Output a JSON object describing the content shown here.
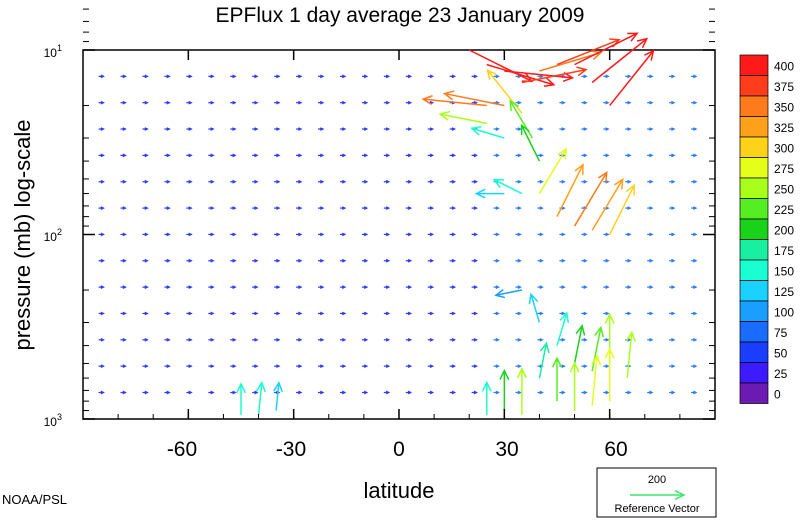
{
  "credit": "NOAA/PSL",
  "chart_data": {
    "type": "vector-field",
    "title": "EPFlux  1 day average  23 January   2009",
    "xlabel": "latitude",
    "ylabel": "pressure (mb)  log-scale",
    "xlim": [
      -90,
      90
    ],
    "ylim": [
      1000,
      10
    ],
    "y_scale": "log",
    "x_ticks": [
      -60,
      -30,
      0,
      30,
      60
    ],
    "y_ticks": [
      {
        "base": "10",
        "exp": "1",
        "value": 10
      },
      {
        "base": "10",
        "exp": "2",
        "value": 100
      },
      {
        "base": "10",
        "exp": "3",
        "value": 1000
      }
    ],
    "grid": false,
    "colorbar": {
      "labels": [
        "400",
        "375",
        "350",
        "325",
        "300",
        "275",
        "250",
        "225",
        "200",
        "175",
        "150",
        "125",
        "100",
        "75",
        "50",
        "25",
        "0"
      ],
      "colors": [
        "#ff1a1a",
        "#ff3d1a",
        "#ff7a1a",
        "#ffa01a",
        "#ffd21a",
        "#e6ff1a",
        "#aaff1a",
        "#55ee22",
        "#1ad21a",
        "#1aeea0",
        "#1affd2",
        "#1ad2ff",
        "#1a9eff",
        "#1a6bff",
        "#1a3dff",
        "#3d1aff",
        "#6b1ab4"
      ]
    },
    "reference_vector": {
      "value": "200",
      "label": "Reference Vector",
      "color": "#3de66b"
    },
    "vectors": [
      {
        "lat": 20,
        "p": 10,
        "u": 1,
        "v": -0.5,
        "mag": 400
      },
      {
        "lat": 25,
        "p": 12,
        "u": 1,
        "v": -0.3,
        "mag": 400
      },
      {
        "lat": 30,
        "p": 13,
        "u": 1,
        "v": -0.1,
        "mag": 390
      },
      {
        "lat": 35,
        "p": 15,
        "u": 1,
        "v": 0.2,
        "mag": 370
      },
      {
        "lat": 40,
        "p": 13,
        "u": 1,
        "v": 0.3,
        "mag": 360
      },
      {
        "lat": 45,
        "p": 12,
        "u": 1,
        "v": 0.4,
        "mag": 380
      },
      {
        "lat": 50,
        "p": 12,
        "u": 1,
        "v": 0.5,
        "mag": 400
      },
      {
        "lat": 55,
        "p": 15,
        "u": 1,
        "v": 0.8,
        "mag": 400
      },
      {
        "lat": 60,
        "p": 20,
        "u": 0.8,
        "v": 1,
        "mag": 400
      },
      {
        "lat": 25,
        "p": 20,
        "u": -1,
        "v": 0.1,
        "mag": 360
      },
      {
        "lat": 30,
        "p": 20,
        "u": -1,
        "v": 0.2,
        "mag": 340
      },
      {
        "lat": 25,
        "p": 25,
        "u": -1,
        "v": 0.2,
        "mag": 250
      },
      {
        "lat": 35,
        "p": 22,
        "u": -0.8,
        "v": 1,
        "mag": 300
      },
      {
        "lat": 40,
        "p": 60,
        "u": 0.6,
        "v": 1,
        "mag": 280
      },
      {
        "lat": 45,
        "p": 80,
        "u": 0.5,
        "v": 1,
        "mag": 320
      },
      {
        "lat": 50,
        "p": 90,
        "u": 0.6,
        "v": 1,
        "mag": 350
      },
      {
        "lat": 55,
        "p": 95,
        "u": 0.6,
        "v": 1,
        "mag": 330
      },
      {
        "lat": 60,
        "p": 100,
        "u": 0.5,
        "v": 1,
        "mag": 300
      },
      {
        "lat": 38,
        "p": 30,
        "u": -0.6,
        "v": 1,
        "mag": 220
      },
      {
        "lat": 30,
        "p": 30,
        "u": -1,
        "v": 0.3,
        "mag": 160
      },
      {
        "lat": 30,
        "p": 60,
        "u": -1,
        "v": 0,
        "mag": 120
      },
      {
        "lat": 35,
        "p": 60,
        "u": -0.8,
        "v": 0.4,
        "mag": 140
      },
      {
        "lat": 40,
        "p": 40,
        "u": -0.5,
        "v": 1,
        "mag": 200
      },
      {
        "lat": 35,
        "p": 200,
        "u": -1,
        "v": -0.2,
        "mag": 110
      },
      {
        "lat": 40,
        "p": 300,
        "u": -0.3,
        "v": 1,
        "mag": 130
      },
      {
        "lat": 45,
        "p": 400,
        "u": 0.3,
        "v": 1,
        "mag": 160
      },
      {
        "lat": 50,
        "p": 500,
        "u": 0.2,
        "v": 1,
        "mag": 190
      },
      {
        "lat": 55,
        "p": 550,
        "u": 0.2,
        "v": 1,
        "mag": 230
      },
      {
        "lat": 60,
        "p": 500,
        "u": 0,
        "v": 1,
        "mag": 260
      },
      {
        "lat": 65,
        "p": 600,
        "u": 0.1,
        "v": 1,
        "mag": 240
      },
      {
        "lat": 40,
        "p": 600,
        "u": 0.2,
        "v": 1,
        "mag": 170
      },
      {
        "lat": 45,
        "p": 800,
        "u": 0,
        "v": 1,
        "mag": 220
      },
      {
        "lat": 50,
        "p": 900,
        "u": 0,
        "v": 1,
        "mag": 250
      },
      {
        "lat": 55,
        "p": 850,
        "u": 0.1,
        "v": 1,
        "mag": 270
      },
      {
        "lat": 60,
        "p": 800,
        "u": 0,
        "v": 1,
        "mag": 280
      },
      {
        "lat": 30,
        "p": 900,
        "u": 0,
        "v": 1,
        "mag": 200
      },
      {
        "lat": 35,
        "p": 950,
        "u": 0,
        "v": 1,
        "mag": 240
      },
      {
        "lat": 25,
        "p": 950,
        "u": 0,
        "v": 1,
        "mag": 150
      },
      {
        "lat": -45,
        "p": 950,
        "u": 0,
        "v": 1,
        "mag": 140
      },
      {
        "lat": -40,
        "p": 950,
        "u": 0.1,
        "v": 1,
        "mag": 150
      },
      {
        "lat": -35,
        "p": 900,
        "u": 0.1,
        "v": 1,
        "mag": 120
      }
    ]
  }
}
